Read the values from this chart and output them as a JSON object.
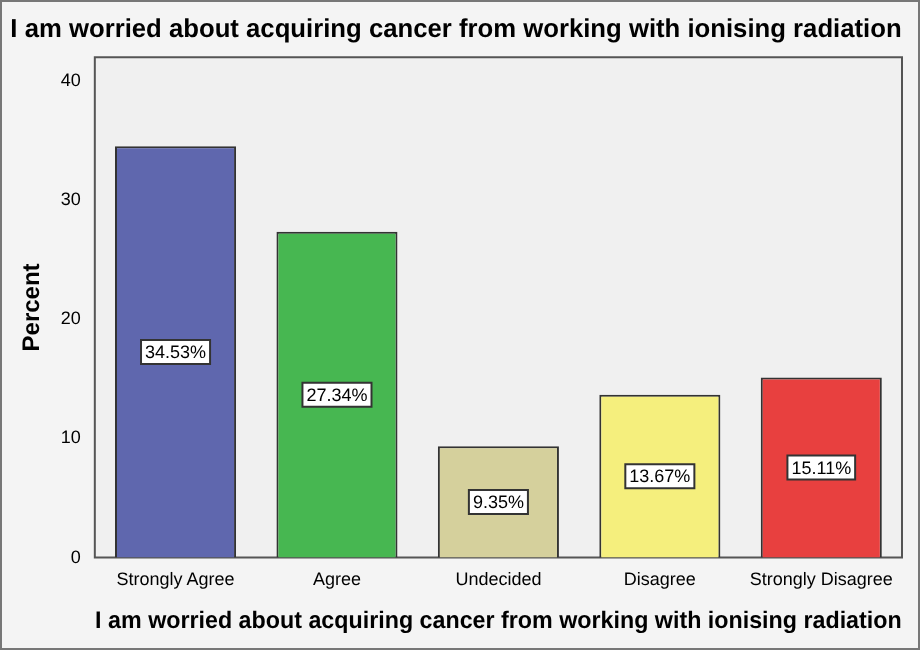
{
  "chart_data": {
    "type": "bar",
    "title": "I am worried about acquiring cancer from working with ionising radiation",
    "xlabel": "I am worried about acquiring cancer from working with ionising radiation",
    "ylabel": "Percent",
    "categories": [
      "Strongly Agree",
      "Agree",
      "Undecided",
      "Disagree",
      "Strongly Disagree"
    ],
    "values": [
      34.53,
      27.34,
      9.35,
      13.67,
      15.11
    ],
    "value_labels": [
      "34.53%",
      "27.34%",
      "9.35%",
      "13.67%",
      "15.11%"
    ],
    "colors": [
      "#5f67ae",
      "#47b751",
      "#d5d09c",
      "#f5ef7d",
      "#e8403f"
    ],
    "ylim": [
      0,
      42
    ],
    "yticks": [
      0,
      10,
      20,
      30,
      40
    ],
    "grid": false,
    "legend": false
  }
}
